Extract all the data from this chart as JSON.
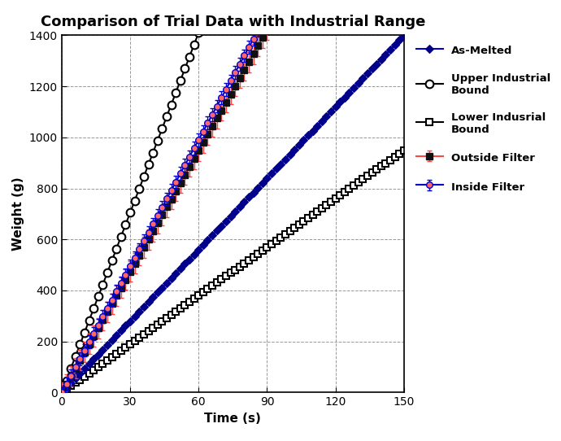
{
  "title": "Comparison of Trial Data with Industrial Range",
  "xlabel": "Time (s)",
  "ylabel": "Weight (g)",
  "xlim": [
    0,
    150
  ],
  "ylim": [
    0,
    1400
  ],
  "xticks": [
    0,
    30,
    60,
    90,
    120,
    150
  ],
  "yticks": [
    0,
    200,
    400,
    600,
    800,
    1000,
    1200,
    1400
  ],
  "as_melted_slope": 9.33,
  "as_melted_end": 150,
  "as_melted_step": 2,
  "as_melted_line_color": "#0000CC",
  "as_melted_marker_color": "#00008B",
  "as_melted_label": "As-Melted",
  "outside_filter_slope": 15.8,
  "outside_filter_end": 90,
  "outside_filter_step": 2,
  "outside_filter_line_color": "#FF4444",
  "outside_filter_marker_color": "#111111",
  "outside_filter_label": "Outside Filter",
  "outside_filter_yerr": 40,
  "inside_filter_slope": 16.5,
  "inside_filter_end": 86,
  "inside_filter_step": 2,
  "inside_filter_line_color": "#0000CC",
  "inside_filter_marker_color": "#FF6666",
  "inside_filter_label": "Inside Filter",
  "inside_filter_yerr": 25,
  "upper_bound_slope": 23.5,
  "upper_bound_end": 60,
  "upper_bound_step": 2,
  "upper_bound_color": "#000000",
  "upper_bound_label": "Upper Industrial\nBound",
  "lower_bound_slope": 6.33,
  "lower_bound_end": 150,
  "lower_bound_step": 2,
  "lower_bound_color": "#000000",
  "lower_bound_label": "Lower Indusrial\nBound",
  "background_color": "#ffffff",
  "grid_color": "#999999",
  "title_fontsize": 13,
  "label_fontsize": 11,
  "tick_fontsize": 10,
  "legend_fontsize": 9.5
}
